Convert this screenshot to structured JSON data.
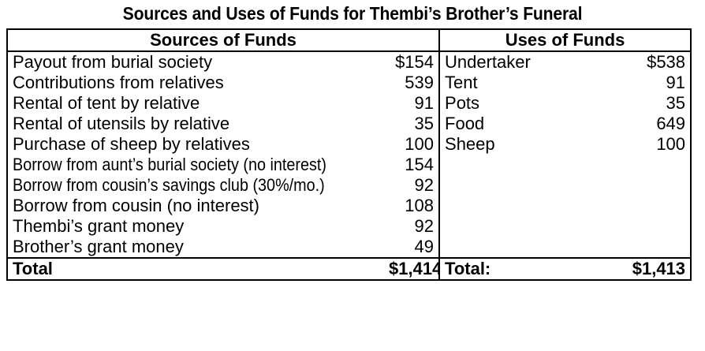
{
  "title": "Sources and Uses of Funds for Thembi’s Brother’s Funeral",
  "headers": {
    "sources": "Sources of Funds",
    "uses": "Uses of Funds"
  },
  "sources": [
    {
      "label": "Payout from burial society",
      "amount": "$154"
    },
    {
      "label": "Contributions from relatives",
      "amount": "539"
    },
    {
      "label": "Rental of tent by relative",
      "amount": "91"
    },
    {
      "label": "Rental of utensils by relative",
      "amount": "35"
    },
    {
      "label": "Purchase of sheep by relatives",
      "amount": "100"
    },
    {
      "label": "Borrow from aunt’s burial society (no interest)",
      "amount": "154"
    },
    {
      "label": "Borrow from cousin’s savings club (30%/mo.)",
      "amount": "92"
    },
    {
      "label": "Borrow from cousin (no interest)",
      "amount": "108"
    },
    {
      "label": "Thembi’s grant money",
      "amount": "92"
    },
    {
      "label": "Brother’s grant money",
      "amount": "49"
    }
  ],
  "uses": [
    {
      "label": "Undertaker",
      "amount": "$538"
    },
    {
      "label": "Tent",
      "amount": "91"
    },
    {
      "label": "Pots",
      "amount": "35"
    },
    {
      "label": "Food",
      "amount": "649"
    },
    {
      "label": "Sheep",
      "amount": "100"
    }
  ],
  "totals": {
    "sources_label": "Total",
    "sources_amount": "$1,414",
    "uses_label": "Total:",
    "uses_amount": "$1,413"
  }
}
